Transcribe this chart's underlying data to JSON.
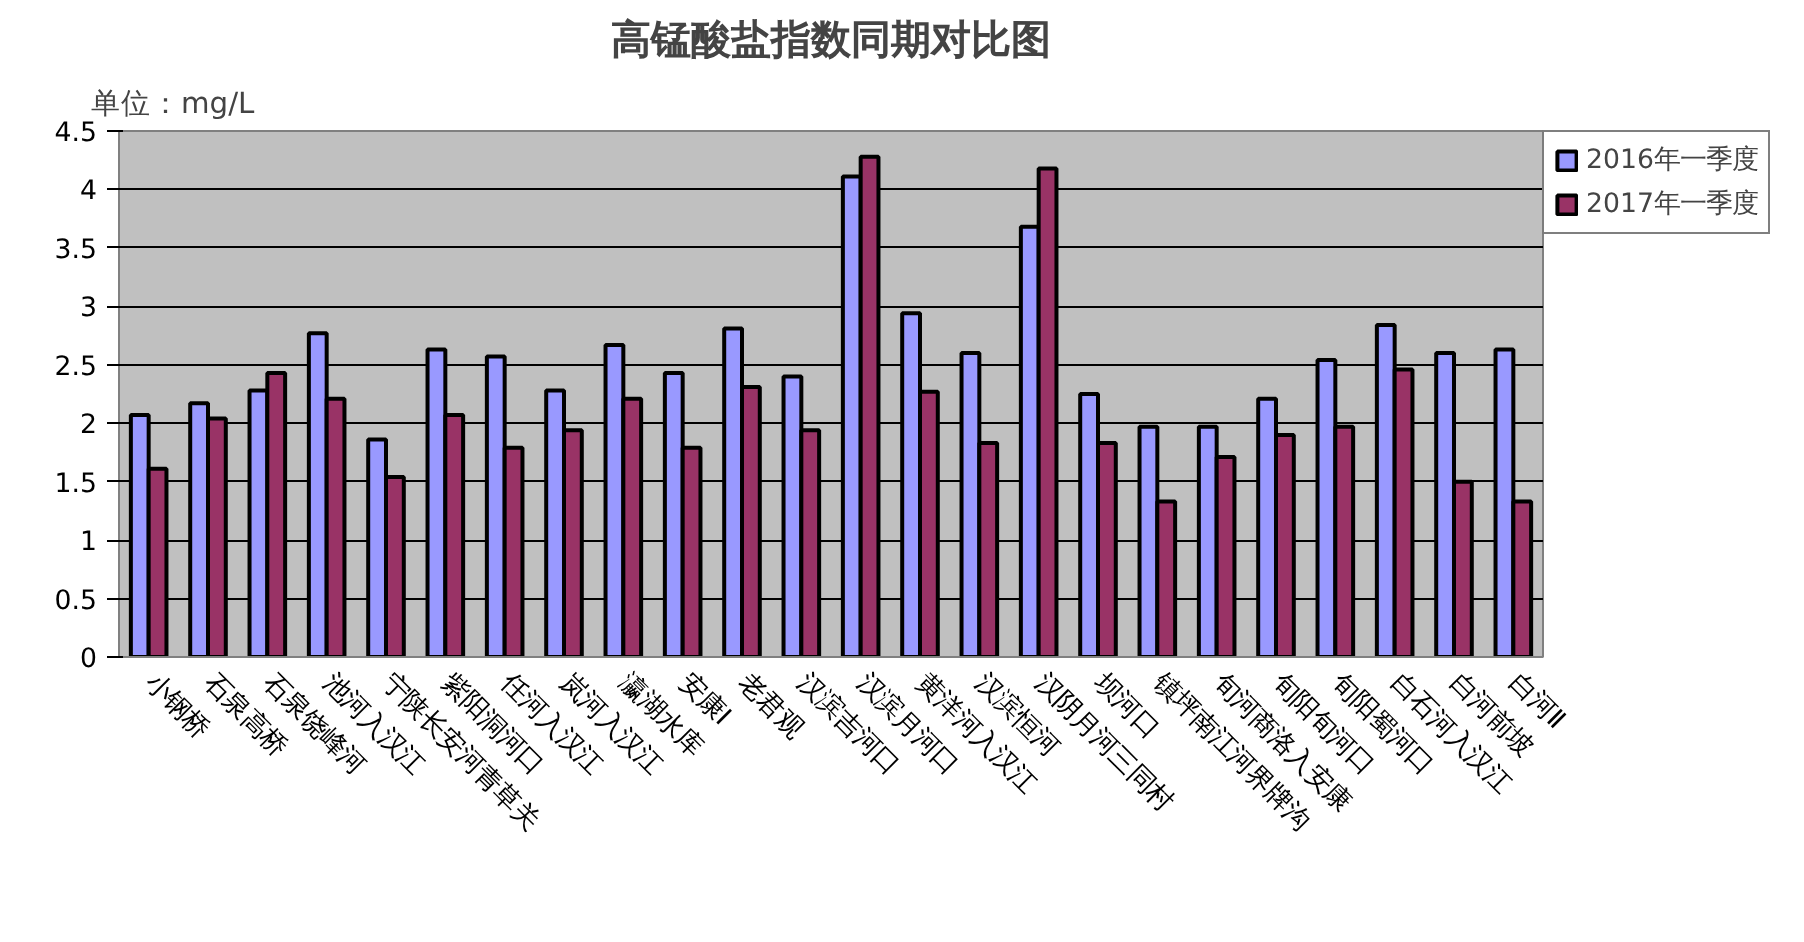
{
  "chart_data": {
    "type": "bar",
    "title": "高锰酸盐指数同期对比图",
    "annotations": [
      "单位：mg/L"
    ],
    "categories": [
      "小钢桥",
      "石泉高桥",
      "石泉饶峰河",
      "池河入汉江",
      "宁陕长安河青草关",
      "紫阳洞河口",
      "任河入汉江",
      "岚河入汉江",
      "瀛湖水库",
      "安康Ⅰ",
      "老君观",
      "汉滨吉河口",
      "汉滨月河口",
      "黄洋河入汉江",
      "汉滨恒河",
      "汉阴月河三同村",
      "坝河口",
      "镇坪南江河界牌沟",
      "旬河商洛入安康",
      "旬阳旬河口",
      "旬阳蜀河口",
      "白石河入汉江",
      "白河前坡",
      "白河Ⅱ"
    ],
    "series": [
      {
        "name": "2016年一季度",
        "color": "#9999ff",
        "values": [
          2.07,
          2.17,
          2.28,
          2.77,
          1.86,
          2.63,
          2.57,
          2.28,
          2.67,
          2.43,
          2.81,
          2.4,
          4.11,
          2.94,
          2.6,
          3.68,
          2.25,
          1.97,
          1.97,
          2.21,
          2.54,
          2.84,
          2.6,
          2.63
        ]
      },
      {
        "name": "2017年一季度",
        "color": "#993366",
        "values": [
          1.61,
          2.04,
          2.43,
          2.21,
          1.54,
          2.07,
          1.79,
          1.94,
          2.21,
          1.79,
          2.31,
          1.94,
          4.28,
          2.27,
          1.83,
          4.18,
          1.83,
          1.33,
          1.71,
          1.9,
          1.97,
          2.46,
          1.5,
          1.33
        ]
      }
    ],
    "ylim": [
      0,
      4.5
    ],
    "yticks": [
      0,
      0.5,
      1,
      1.5,
      2,
      2.5,
      3,
      3.5,
      4,
      4.5
    ],
    "grid": "y",
    "legend": "top right"
  }
}
